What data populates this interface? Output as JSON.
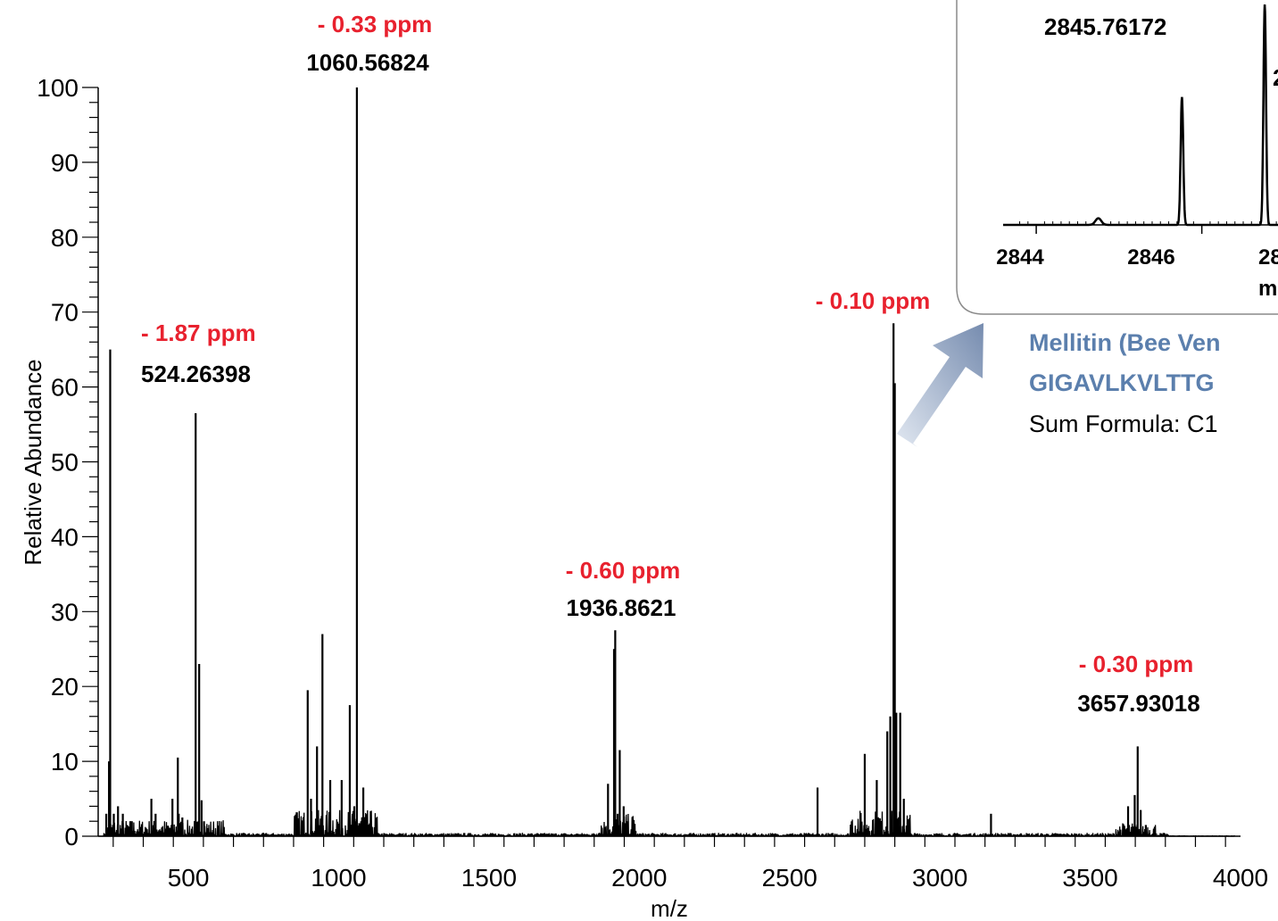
{
  "chart_data": {
    "type": "line",
    "xlabel": "m/z",
    "ylabel": "Relative Abundance",
    "xlim": [
      200,
      4000
    ],
    "ylim": [
      0,
      100
    ],
    "x_ticks": [
      500,
      1000,
      1500,
      2000,
      2500,
      3000,
      3500,
      4000
    ],
    "y_ticks": [
      0,
      10,
      20,
      30,
      40,
      50,
      60,
      70,
      80,
      90,
      100
    ],
    "series": [
      {
        "peaks": [
          [
            240,
            65
          ],
          [
            236,
            10
          ],
          [
            227,
            3
          ],
          [
            252,
            3
          ],
          [
            266,
            4
          ],
          [
            282,
            3
          ],
          [
            312,
            2
          ],
          [
            377,
            5
          ],
          [
            391,
            3
          ],
          [
            447,
            5
          ],
          [
            465,
            10.5
          ],
          [
            468,
            3
          ],
          [
            480,
            2.5
          ],
          [
            524.26,
            56.5
          ],
          [
            536,
            23
          ],
          [
            544,
            4.8
          ],
          [
            552,
            2
          ],
          [
            897,
            19.5
          ],
          [
            908,
            5
          ],
          [
            928,
            12
          ],
          [
            946,
            27
          ],
          [
            972,
            7.5
          ],
          [
            1010,
            7.5
          ],
          [
            1037,
            17.5
          ],
          [
            1052,
            4
          ],
          [
            1060.57,
            100
          ],
          [
            1082,
            6.5
          ],
          [
            1108,
            2
          ],
          [
            1896,
            7
          ],
          [
            1916,
            25
          ],
          [
            1920,
            27.5
          ],
          [
            1928,
            3
          ],
          [
            1935,
            11.5
          ],
          [
            1948,
            4
          ],
          [
            1962,
            2
          ],
          [
            2593,
            6.5
          ],
          [
            2750,
            11
          ],
          [
            2790,
            7.5
          ],
          [
            2825,
            14
          ],
          [
            2835,
            16
          ],
          [
            2845.76,
            68.5
          ],
          [
            2850,
            60.5
          ],
          [
            2855,
            16.5
          ],
          [
            2868,
            16.5
          ],
          [
            2880,
            5
          ],
          [
            3170,
            3
          ],
          [
            3626,
            4
          ],
          [
            3648,
            5.5
          ],
          [
            3657.93,
            12
          ],
          [
            3668,
            3.5
          ],
          [
            3685,
            1.5
          ]
        ]
      }
    ],
    "annotations": [
      {
        "ppm": "- 0.33 ppm",
        "mz": "1060.56824",
        "x": 1060.57
      },
      {
        "ppm": "- 1.87 ppm",
        "mz": "524.26398",
        "x": 524.26
      },
      {
        "ppm": "- 0.60 ppm",
        "mz": "1936.8621",
        "x": 1920
      },
      {
        "ppm": "- 0.10 ppm",
        "x": 2845.76
      },
      {
        "ppm": "- 0.30 ppm",
        "mz": "3657.93018",
        "x": 3657.93
      }
    ],
    "inset": {
      "xlabel": "m/z",
      "visible_xlabel": "m",
      "xlim": [
        2843.6,
        2848.3
      ],
      "x_ticks": [
        2844,
        2846
      ],
      "partial_tick": "28",
      "peak_label": "2845.76172",
      "partial_label": "2",
      "peaks": [
        {
          "x": 2844.75,
          "y": 3
        },
        {
          "x": 2845.76,
          "y": 58
        },
        {
          "x": 2846.76,
          "y": 100
        },
        {
          "x": 2847.76,
          "y": 85
        }
      ]
    },
    "compound": {
      "name_line1": "Mellitin (Bee Ven",
      "name_line2": "GIGAVLKVLTTG",
      "formula": "Sum Formula: C1"
    }
  }
}
